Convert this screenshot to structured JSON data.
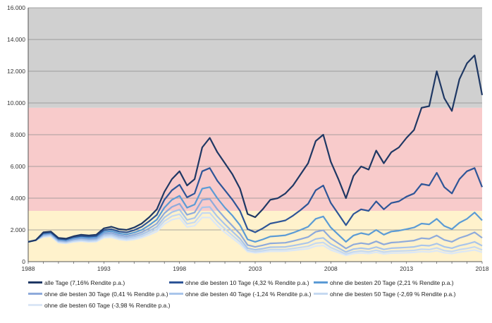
{
  "chart_data": {
    "type": "line",
    "title": "",
    "xlabel": "",
    "ylabel": "",
    "xlim": [
      1988,
      2018
    ],
    "ylim": [
      0,
      16000
    ],
    "x_ticks": [
      "1988",
      "1993",
      "1998",
      "2003",
      "2008",
      "2013",
      "2018"
    ],
    "y_ticks": [
      "0",
      "2.000",
      "4.000",
      "6.000",
      "8.000",
      "10.000",
      "12.000",
      "14.000",
      "16.000"
    ],
    "grid": true,
    "legend_position": "bottom",
    "background_bands": [
      {
        "from": 0,
        "to": 3200,
        "color": "#fff2cc"
      },
      {
        "from": 3200,
        "to": 9700,
        "color": "#f8cbcb"
      },
      {
        "from": 9700,
        "to": 16000,
        "color": "#d0d0d0"
      }
    ],
    "x": [
      1988.0,
      1988.5,
      1989.0,
      1989.5,
      1990.0,
      1990.5,
      1991.0,
      1991.5,
      1992.0,
      1992.5,
      1993.0,
      1993.5,
      1994.0,
      1994.5,
      1995.0,
      1995.5,
      1996.0,
      1996.5,
      1997.0,
      1997.5,
      1998.0,
      1998.5,
      1999.0,
      1999.5,
      2000.0,
      2000.5,
      2001.0,
      2001.5,
      2002.0,
      2002.5,
      2003.0,
      2003.5,
      2004.0,
      2004.5,
      2005.0,
      2005.5,
      2006.0,
      2006.5,
      2007.0,
      2007.5,
      2008.0,
      2008.5,
      2009.0,
      2009.5,
      2010.0,
      2010.5,
      2011.0,
      2011.5,
      2012.0,
      2012.5,
      2013.0,
      2013.5,
      2014.0,
      2014.5,
      2015.0,
      2015.5,
      2016.0,
      2016.5,
      2017.0,
      2017.5,
      2018.0
    ],
    "series": [
      {
        "name": "alle Tage (7,16% Rendite p.a.)",
        "color": "#1f3864",
        "values": [
          1250,
          1350,
          1850,
          1900,
          1500,
          1450,
          1600,
          1700,
          1650,
          1700,
          2100,
          2200,
          2050,
          2000,
          2150,
          2400,
          2800,
          3300,
          4400,
          5200,
          5700,
          4800,
          5200,
          7200,
          7800,
          6900,
          6200,
          5500,
          4600,
          3000,
          2800,
          3300,
          3900,
          4000,
          4300,
          4800,
          5500,
          6200,
          7600,
          8000,
          6300,
          5200,
          4000,
          5400,
          6000,
          5800,
          7000,
          6200,
          6900,
          7200,
          7800,
          8300,
          9700,
          9800,
          12000,
          10300,
          9500,
          11500,
          12500,
          13000,
          10500
        ]
      },
      {
        "name": "ohne die besten 10 Tage (4,32 % Rendite p.a.)",
        "color": "#2e5597",
        "values": [
          1250,
          1350,
          1800,
          1850,
          1450,
          1400,
          1550,
          1620,
          1580,
          1620,
          1980,
          2050,
          1900,
          1850,
          1980,
          2200,
          2550,
          2950,
          3900,
          4500,
          4850,
          4050,
          4300,
          5700,
          5900,
          5100,
          4500,
          3900,
          3200,
          2050,
          1850,
          2100,
          2400,
          2500,
          2600,
          2900,
          3250,
          3650,
          4500,
          4800,
          3700,
          3000,
          2300,
          3000,
          3300,
          3200,
          3800,
          3300,
          3700,
          3800,
          4100,
          4300,
          4900,
          4800,
          5600,
          4700,
          4300,
          5200,
          5700,
          5900,
          4700
        ]
      },
      {
        "name": "ohne die besten 20 Tage (2,21 % Rendite p.a.)",
        "color": "#5b9bd5",
        "values": [
          1250,
          1350,
          1750,
          1800,
          1400,
          1350,
          1480,
          1550,
          1500,
          1540,
          1870,
          1930,
          1780,
          1720,
          1830,
          2000,
          2300,
          2650,
          3400,
          3900,
          4150,
          3400,
          3600,
          4600,
          4700,
          4000,
          3400,
          2900,
          2300,
          1400,
          1250,
          1400,
          1580,
          1620,
          1660,
          1820,
          2000,
          2200,
          2700,
          2850,
          2150,
          1700,
          1250,
          1650,
          1800,
          1700,
          2000,
          1700,
          1900,
          1950,
          2050,
          2150,
          2400,
          2350,
          2700,
          2250,
          2050,
          2450,
          2700,
          3100,
          2600
        ]
      },
      {
        "name": "ohne die besten 30 Tage (0,41 % Rendite p.a.)",
        "color": "#8eaadb",
        "values": [
          1250,
          1350,
          1700,
          1750,
          1350,
          1300,
          1420,
          1480,
          1430,
          1460,
          1770,
          1820,
          1670,
          1610,
          1700,
          1850,
          2100,
          2400,
          3050,
          3450,
          3650,
          2950,
          3100,
          3900,
          3950,
          3300,
          2750,
          2250,
          1750,
          1050,
          930,
          1030,
          1150,
          1170,
          1190,
          1300,
          1420,
          1550,
          1880,
          1980,
          1480,
          1150,
          830,
          1080,
          1170,
          1100,
          1280,
          1080,
          1200,
          1230,
          1280,
          1330,
          1480,
          1440,
          1650,
          1370,
          1250,
          1490,
          1640,
          1850,
          1500
        ]
      },
      {
        "name": "ohne die besten 40 Tage (-1,24 % Rendite p.a.)",
        "color": "#a9c5eb",
        "values": [
          1250,
          1350,
          1650,
          1700,
          1300,
          1250,
          1360,
          1410,
          1360,
          1390,
          1680,
          1720,
          1570,
          1510,
          1590,
          1720,
          1940,
          2200,
          2780,
          3120,
          3280,
          2630,
          2750,
          3420,
          3450,
          2850,
          2350,
          1900,
          1450,
          850,
          750,
          820,
          910,
          920,
          930,
          1010,
          1100,
          1190,
          1430,
          1500,
          1110,
          860,
          610,
          790,
          850,
          790,
          920,
          770,
          850,
          870,
          900,
          930,
          1030,
          1000,
          1140,
          940,
          850,
          1010,
          1110,
          1250,
          1000
        ]
      },
      {
        "name": "ohne die besten 50 Tage (-2,69 % Rendite p.a.)",
        "color": "#c5d9f1",
        "values": [
          1250,
          1350,
          1600,
          1650,
          1250,
          1200,
          1300,
          1350,
          1300,
          1320,
          1590,
          1630,
          1480,
          1420,
          1490,
          1610,
          1810,
          2040,
          2560,
          2860,
          2990,
          2380,
          2480,
          3060,
          3070,
          2520,
          2060,
          1650,
          1250,
          720,
          630,
          690,
          760,
          760,
          770,
          830,
          900,
          970,
          1160,
          1210,
          890,
          690,
          480,
          620,
          670,
          620,
          720,
          600,
          660,
          670,
          690,
          710,
          780,
          760,
          860,
          700,
          640,
          760,
          830,
          930,
          740
        ]
      },
      {
        "name": "ohne die besten 60 Tage (-3,98 % Rendite p.a.)",
        "color": "#dbe7f6",
        "values": [
          1250,
          1350,
          1550,
          1600,
          1200,
          1150,
          1240,
          1290,
          1240,
          1260,
          1510,
          1540,
          1400,
          1340,
          1400,
          1510,
          1690,
          1900,
          2370,
          2640,
          2750,
          2180,
          2260,
          2780,
          2780,
          2270,
          1840,
          1470,
          1100,
          630,
          550,
          600,
          650,
          650,
          660,
          710,
          760,
          820,
          980,
          1020,
          740,
          570,
          400,
          510,
          550,
          510,
          590,
          490,
          540,
          550,
          560,
          580,
          630,
          610,
          690,
          560,
          510,
          600,
          660,
          740,
          590
        ]
      }
    ]
  }
}
